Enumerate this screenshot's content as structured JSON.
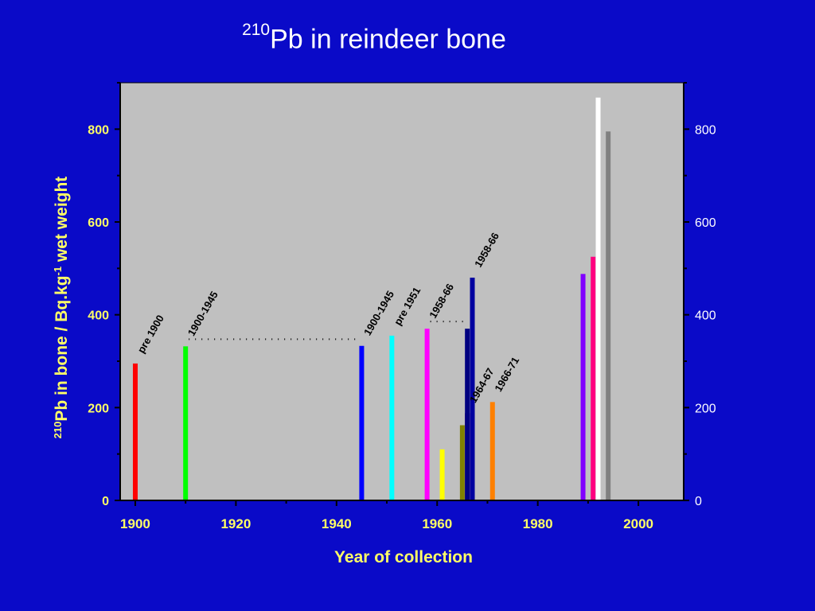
{
  "title": {
    "sup": "210",
    "main": "Pb in reindeer bone"
  },
  "colors": {
    "background": "#0A0AC8",
    "plot_area": "#C0C0C0",
    "axis_text": "#FFFF66",
    "right_axis_text": "#FFFFFF",
    "title_text": "#FFFFFF"
  },
  "chart_data": {
    "type": "bar",
    "title": "210Pb in reindeer bone",
    "xlabel": "Year of collection",
    "ylabel": {
      "sup1": "210",
      "part1": "Pb in  bone / Bq.kg",
      "sup2": "-1",
      "part2": " wet weight"
    },
    "xlim": [
      1897,
      2009
    ],
    "ylim": [
      0,
      900
    ],
    "x_ticks": [
      1900,
      1920,
      1940,
      1960,
      1980,
      2000
    ],
    "y_ticks": [
      0,
      200,
      400,
      600,
      800
    ],
    "right_axis": true,
    "grid": false,
    "legend": "none",
    "bars": [
      {
        "x": 1900,
        "value": 295,
        "color": "#FF0000",
        "annotation": "pre 1900"
      },
      {
        "x": 1910,
        "value": 332,
        "color": "#00FF00",
        "annotation": "1900-1945"
      },
      {
        "x": 1945,
        "value": 333,
        "color": "#0000FF",
        "annotation": "1900-1945"
      },
      {
        "x": 1951,
        "value": 355,
        "color": "#00FFFF",
        "annotation": "pre 1951"
      },
      {
        "x": 1958,
        "value": 370,
        "color": "#FF00FF",
        "annotation": "1958-66"
      },
      {
        "x": 1961,
        "value": 110,
        "color": "#FFFF00",
        "annotation": ""
      },
      {
        "x": 1965,
        "value": 162,
        "color": "#808000",
        "annotation": ""
      },
      {
        "x": 1966,
        "value": 188,
        "color": "#800080",
        "annotation": "1964-67"
      },
      {
        "x": 1966,
        "value": 370,
        "color": "#000080",
        "annotation": ""
      },
      {
        "x": 1967,
        "value": 480,
        "color": "#0000A0",
        "annotation": "1958-66"
      },
      {
        "x": 1971,
        "value": 212,
        "color": "#FF8000",
        "annotation": "1966-71"
      },
      {
        "x": 1989,
        "value": 488,
        "color": "#8000FF",
        "annotation": ""
      },
      {
        "x": 1991,
        "value": 525,
        "color": "#FF0080",
        "annotation": ""
      },
      {
        "x": 1992,
        "value": 868,
        "color": "#FFFFFF",
        "annotation": ""
      },
      {
        "x": 1994,
        "value": 795,
        "color": "#808080",
        "annotation": ""
      }
    ],
    "dotted_lines": [
      {
        "x1": 1910,
        "x2": 1945,
        "y": 332
      },
      {
        "x1": 1958,
        "x2": 1966,
        "y": 370
      }
    ]
  }
}
